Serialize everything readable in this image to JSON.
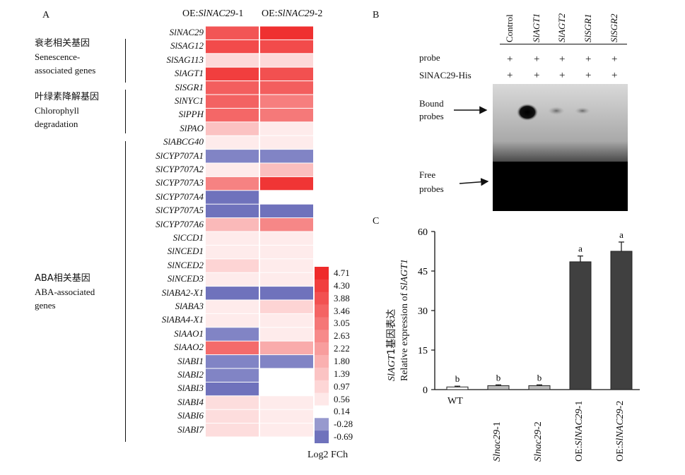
{
  "panelA": {
    "label": "A",
    "col_headers": [
      "OE:SlNAC29-1",
      "OE:SlNAC29-2"
    ],
    "groups": [
      {
        "zh": "衰老相关基因",
        "en1": "Senescence-",
        "en2": "associated genes"
      },
      {
        "zh": "叶绿素降解基因",
        "en1": "Chlorophyll",
        "en2": "degradation"
      },
      {
        "zh": "ABA相关基因",
        "en1": "ABA-associated",
        "en2": "genes"
      }
    ],
    "genes": [
      "SlNAC29",
      "SlSAG12",
      "SlSAG113",
      "SlAGT1",
      "SlSGR1",
      "SlNYC1",
      "SlPPH",
      "SlPAO",
      "SlABCG40",
      "SlCYP707A1",
      "SlCYP707A2",
      "SlCYP707A3",
      "SlCYP707A4",
      "SlCYP707A5",
      "SlCYP707A6",
      "SlCCD1",
      "SlNCED1",
      "SlNCED2",
      "SlNCED3",
      "SlABA2-X1",
      "SlABA3",
      "SlABA4-X1",
      "SlAAO1",
      "SlAAO2",
      "SlABI1",
      "SlABI2",
      "SlABI3",
      "SlABI4",
      "SlABI6",
      "SlABI7"
    ],
    "legend": {
      "labels": [
        "4.71",
        "4.30",
        "3.88",
        "3.46",
        "3.05",
        "2.63",
        "2.22",
        "1.80",
        "1.39",
        "0.97",
        "0.56",
        "0.14",
        "-0.28",
        "-0.69"
      ],
      "title": "Log2 FCh"
    }
  },
  "chart_data": [
    {
      "type": "heatmap",
      "rows": [
        "SlNAC29",
        "SlSAG12",
        "SlSAG113",
        "SlAGT1",
        "SlSGR1",
        "SlNYC1",
        "SlPPH",
        "SlPAO",
        "SlABCG40",
        "SlCYP707A1",
        "SlCYP707A2",
        "SlCYP707A3",
        "SlCYP707A4",
        "SlCYP707A5",
        "SlCYP707A6",
        "SlCCD1",
        "SlNCED1",
        "SlNCED2",
        "SlNCED3",
        "SlABA2-X1",
        "SlABA3",
        "SlABA4-X1",
        "SlAAO1",
        "SlAAO2",
        "SlABI1",
        "SlABI2",
        "SlABI3",
        "SlABI4",
        "SlABI6",
        "SlABI7"
      ],
      "columns": [
        "OE:SlNAC29-1",
        "OE:SlNAC29-2"
      ],
      "values": [
        [
          3.8,
          4.6
        ],
        [
          4.0,
          4.0
        ],
        [
          0.9,
          0.9
        ],
        [
          4.3,
          3.9
        ],
        [
          3.6,
          3.6
        ],
        [
          3.5,
          2.9
        ],
        [
          3.4,
          3.0
        ],
        [
          1.4,
          0.5
        ],
        [
          0.5,
          0.5
        ],
        [
          -0.5,
          -0.5
        ],
        [
          0.5,
          1.5
        ],
        [
          2.8,
          4.5
        ],
        [
          -0.69,
          null
        ],
        [
          -0.69,
          -0.69
        ],
        [
          1.6,
          2.7
        ],
        [
          0.5,
          0.5
        ],
        [
          0.5,
          0.5
        ],
        [
          1.0,
          0.5
        ],
        [
          0.5,
          0.5
        ],
        [
          -0.69,
          -0.69
        ],
        [
          0.5,
          1.0
        ],
        [
          0.5,
          0.5
        ],
        [
          -0.5,
          0.5
        ],
        [
          3.3,
          1.9
        ],
        [
          -0.5,
          -0.5
        ],
        [
          -0.5,
          null
        ],
        [
          -0.69,
          null
        ],
        [
          0.8,
          0.5
        ],
        [
          0.8,
          0.5
        ],
        [
          0.8,
          0.5
        ]
      ],
      "colorscale": {
        "min": -0.69,
        "max": 4.71,
        "low": "#6f72bc",
        "mid": "#ffffff",
        "high": "#ef2b2b"
      }
    },
    {
      "type": "bar",
      "categories": [
        "WT",
        "Slnac29-1",
        "Slnac29-2",
        "OE:SlNAC29-1",
        "OE:SlNAC29-2"
      ],
      "values": [
        1,
        1.5,
        1.5,
        48.5,
        52.5
      ],
      "errors": [
        0.3,
        0.3,
        0.3,
        2.2,
        3.5
      ],
      "significance": [
        "b",
        "b",
        "b",
        "a",
        "a"
      ],
      "colors": [
        "#ffffff",
        "#bbbbbb",
        "#bbbbbb",
        "#404040",
        "#404040"
      ],
      "ylabel": "SlAGT1基因表达 Relative expression of SlAGT1",
      "xlabel": "",
      "yticks": [
        0,
        15,
        30,
        45,
        60
      ],
      "ylim": [
        0,
        60
      ]
    }
  ],
  "panelB": {
    "label": "B",
    "lanes": [
      "Control",
      "SlAGT1",
      "SlAGT2",
      "SlSGR1",
      "SlSGR2"
    ],
    "row1_label": "probe",
    "row2_label": "SlNAC29-His",
    "plus": "+",
    "bound_label": [
      "Bound",
      "probes"
    ],
    "free_label": [
      "Free",
      "probes"
    ]
  },
  "panelC": {
    "label": "C",
    "ylabel_zh": "SlAGT1基因表达",
    "ylabel_en": "Relative expression of SlAGT1"
  }
}
